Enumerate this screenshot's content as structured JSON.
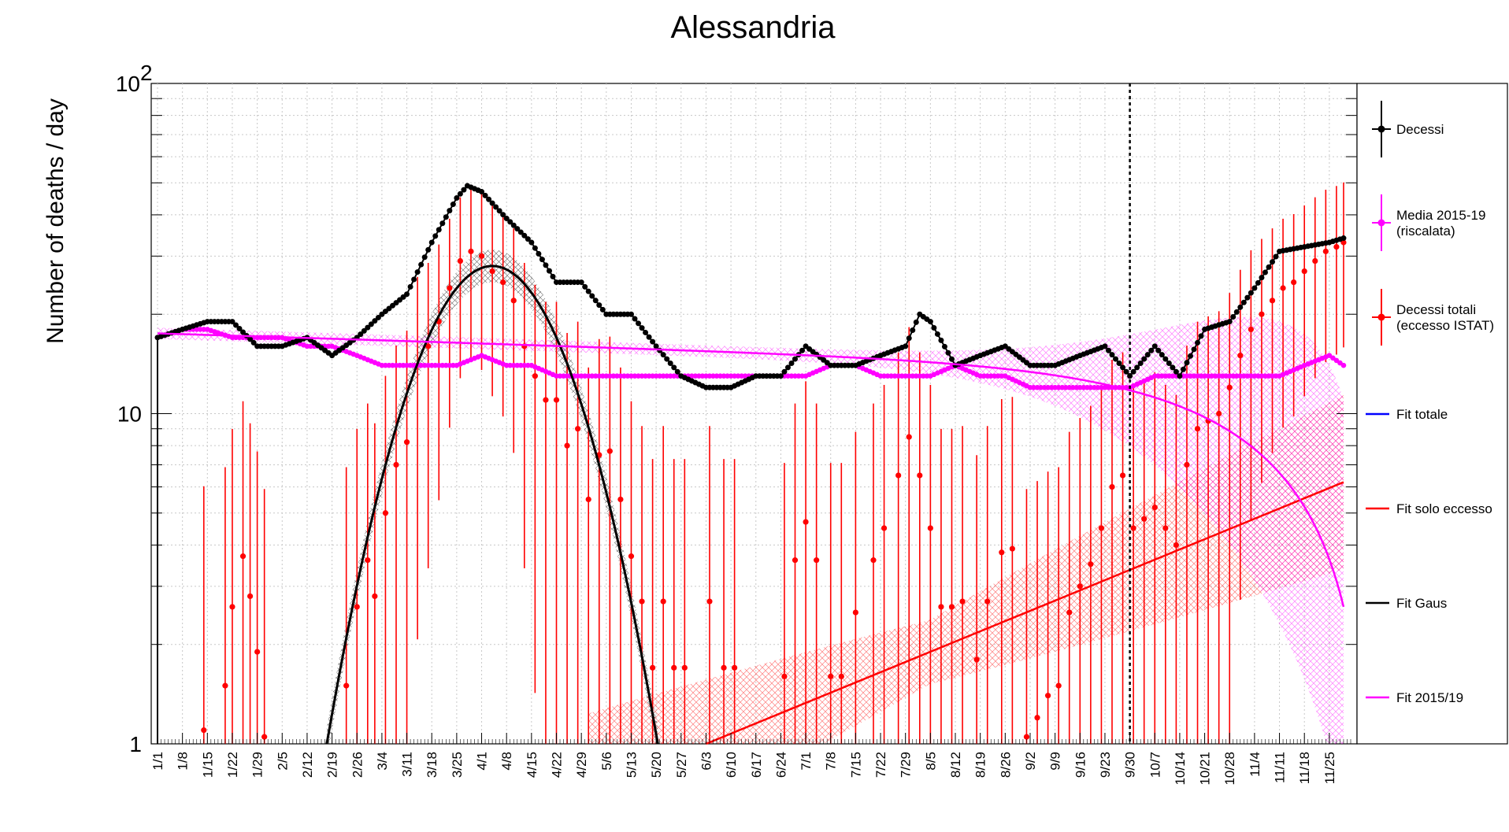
{
  "chart_data": {
    "type": "scatter",
    "title": "Alessandria",
    "xlabel": "",
    "ylabel": "Number of deaths / day",
    "y_scale": "log",
    "ylim": [
      1,
      100
    ],
    "y_ticks": [
      {
        "v": 1,
        "label": "1"
      },
      {
        "v": 10,
        "label": "10"
      },
      {
        "v": 100,
        "label": "10",
        "sup": "2"
      }
    ],
    "x_range": [
      "2020-01-01",
      "2020-12-01"
    ],
    "x_tick_labels": [
      "1/1",
      "1/8",
      "1/15",
      "1/22",
      "1/29",
      "2/5",
      "2/12",
      "2/19",
      "2/26",
      "3/4",
      "3/11",
      "3/18",
      "3/25",
      "4/1",
      "4/8",
      "4/15",
      "4/22",
      "4/29",
      "5/6",
      "5/13",
      "5/20",
      "5/27",
      "6/3",
      "6/10",
      "6/17",
      "6/24",
      "7/1",
      "7/8",
      "7/15",
      "7/22",
      "7/29",
      "8/5",
      "8/12",
      "8/19",
      "8/26",
      "9/2",
      "9/9",
      "9/16",
      "9/23",
      "9/30",
      "10/7",
      "10/14",
      "10/21",
      "10/28",
      "11/4",
      "11/11",
      "11/18",
      "11/25"
    ],
    "vertical_marker": "2020-09-30",
    "grid": true,
    "legend_position": "right",
    "colors": {
      "decessi": "#000000",
      "media": "#ff00ff",
      "eccesso": "#ff0000",
      "fit_totale": "#0000ff"
    },
    "legend": [
      {
        "label": "Decessi",
        "color": "#000000",
        "kind": "marker"
      },
      {
        "label": "Media 2015-19",
        "label2": "(riscalata)",
        "color": "#ff00ff",
        "kind": "marker"
      },
      {
        "label": "Decessi totali",
        "label2": "(eccesso ISTAT)",
        "color": "#ff0000",
        "kind": "marker"
      },
      {
        "label": "Fit totale",
        "color": "#0000ff",
        "kind": "line"
      },
      {
        "label": "Fit solo eccesso",
        "color": "#ff0000",
        "kind": "line"
      },
      {
        "label": "Fit Gaus",
        "color": "#000000",
        "kind": "line"
      },
      {
        "label": "Fit 2015/19",
        "color": "#ff00ff",
        "kind": "line"
      }
    ],
    "series": [
      {
        "name": "Decessi",
        "color": "#000000",
        "x": [
          "2020-01-01",
          "2020-01-08",
          "2020-01-15",
          "2020-01-22",
          "2020-01-29",
          "2020-02-05",
          "2020-02-12",
          "2020-02-19",
          "2020-02-26",
          "2020-03-04",
          "2020-03-11",
          "2020-03-18",
          "2020-03-25",
          "2020-03-28",
          "2020-04-01",
          "2020-04-08",
          "2020-04-15",
          "2020-04-22",
          "2020-04-29",
          "2020-05-06",
          "2020-05-13",
          "2020-05-20",
          "2020-05-27",
          "2020-06-03",
          "2020-06-10",
          "2020-06-17",
          "2020-06-24",
          "2020-07-01",
          "2020-07-08",
          "2020-07-15",
          "2020-07-22",
          "2020-07-29",
          "2020-08-02",
          "2020-08-05",
          "2020-08-12",
          "2020-08-19",
          "2020-08-26",
          "2020-09-02",
          "2020-09-09",
          "2020-09-16",
          "2020-09-23",
          "2020-09-30",
          "2020-10-07",
          "2020-10-14",
          "2020-10-21",
          "2020-10-28",
          "2020-11-04",
          "2020-11-11",
          "2020-11-18",
          "2020-11-25",
          "2020-11-29"
        ],
        "y": [
          17,
          18,
          19,
          19,
          16,
          16,
          17,
          15,
          17,
          20,
          23,
          33,
          45,
          49,
          47,
          39,
          33,
          25,
          25,
          20,
          20,
          16,
          13,
          12,
          12,
          13,
          13,
          16,
          14,
          14,
          15,
          16,
          20,
          19,
          14,
          15,
          16,
          14,
          14,
          15,
          16,
          13,
          16,
          13,
          18,
          19,
          24,
          31,
          32,
          33,
          34
        ]
      },
      {
        "name": "Media 2015-19",
        "color": "#ff00ff",
        "x": [
          "2020-01-01",
          "2020-01-08",
          "2020-01-15",
          "2020-01-22",
          "2020-01-29",
          "2020-02-05",
          "2020-02-12",
          "2020-02-19",
          "2020-02-26",
          "2020-03-04",
          "2020-03-11",
          "2020-03-18",
          "2020-03-25",
          "2020-04-01",
          "2020-04-08",
          "2020-04-15",
          "2020-04-22",
          "2020-04-29",
          "2020-05-06",
          "2020-05-13",
          "2020-05-20",
          "2020-05-27",
          "2020-06-03",
          "2020-06-10",
          "2020-06-17",
          "2020-06-24",
          "2020-07-01",
          "2020-07-08",
          "2020-07-15",
          "2020-07-22",
          "2020-07-29",
          "2020-08-05",
          "2020-08-12",
          "2020-08-19",
          "2020-08-26",
          "2020-09-02",
          "2020-09-09",
          "2020-09-16",
          "2020-09-23",
          "2020-09-30",
          "2020-10-07",
          "2020-10-14",
          "2020-10-21",
          "2020-10-28",
          "2020-11-04",
          "2020-11-11",
          "2020-11-18",
          "2020-11-25",
          "2020-11-29"
        ],
        "y": [
          17,
          18,
          18,
          17,
          17,
          17,
          16,
          16,
          15,
          14,
          14,
          14,
          14,
          15,
          14,
          14,
          13,
          13,
          13,
          13,
          13,
          13,
          13,
          13,
          13,
          13,
          13,
          14,
          14,
          13,
          13,
          13,
          14,
          13,
          13,
          12,
          12,
          12,
          12,
          12,
          13,
          13,
          13,
          13,
          13,
          13,
          14,
          15,
          14
        ]
      },
      {
        "name": "Decessi totali",
        "color": "#ff0000",
        "x": [
          "2020-01-14",
          "2020-01-20",
          "2020-01-22",
          "2020-01-25",
          "2020-01-27",
          "2020-01-29",
          "2020-01-31",
          "2020-02-23",
          "2020-02-26",
          "2020-02-29",
          "2020-03-02",
          "2020-03-05",
          "2020-03-08",
          "2020-03-11",
          "2020-03-14",
          "2020-03-17",
          "2020-03-20",
          "2020-03-23",
          "2020-03-26",
          "2020-03-29",
          "2020-04-01",
          "2020-04-04",
          "2020-04-07",
          "2020-04-10",
          "2020-04-13",
          "2020-04-16",
          "2020-04-19",
          "2020-04-22",
          "2020-04-25",
          "2020-04-28",
          "2020-05-01",
          "2020-05-04",
          "2020-05-07",
          "2020-05-10",
          "2020-05-13",
          "2020-05-16",
          "2020-05-19",
          "2020-05-22",
          "2020-05-25",
          "2020-05-28",
          "2020-06-04",
          "2020-06-08",
          "2020-06-11",
          "2020-06-25",
          "2020-06-28",
          "2020-07-01",
          "2020-07-04",
          "2020-07-08",
          "2020-07-11",
          "2020-07-15",
          "2020-07-20",
          "2020-07-23",
          "2020-07-27",
          "2020-07-30",
          "2020-08-02",
          "2020-08-05",
          "2020-08-08",
          "2020-08-11",
          "2020-08-14",
          "2020-08-18",
          "2020-08-21",
          "2020-08-25",
          "2020-08-28",
          "2020-09-01",
          "2020-09-04",
          "2020-09-07",
          "2020-09-10",
          "2020-09-13",
          "2020-09-16",
          "2020-09-19",
          "2020-09-22",
          "2020-09-25",
          "2020-09-28",
          "2020-10-01",
          "2020-10-04",
          "2020-10-07",
          "2020-10-10",
          "2020-10-13",
          "2020-10-16",
          "2020-10-19",
          "2020-10-22",
          "2020-10-25",
          "2020-10-28",
          "2020-10-31",
          "2020-11-03",
          "2020-11-06",
          "2020-11-09",
          "2020-11-12",
          "2020-11-15",
          "2020-11-18",
          "2020-11-21",
          "2020-11-24",
          "2020-11-27",
          "2020-11-29"
        ],
        "y": [
          1.1,
          1.5,
          2.6,
          3.7,
          2.8,
          1.9,
          1.05,
          1.5,
          2.6,
          3.6,
          2.8,
          5.0,
          7.0,
          8.2,
          14,
          16,
          19,
          24,
          29,
          31,
          30,
          27,
          25,
          22,
          16,
          13,
          11,
          11,
          8.0,
          9.0,
          5.5,
          7.5,
          7.7,
          5.5,
          3.7,
          2.7,
          1.7,
          2.7,
          1.7,
          1.7,
          2.7,
          1.7,
          1.7,
          1.6,
          3.6,
          4.7,
          3.6,
          1.6,
          1.6,
          2.5,
          3.6,
          4.5,
          6.5,
          8.5,
          6.5,
          4.5,
          2.6,
          2.6,
          2.7,
          1.8,
          2.7,
          3.8,
          3.9,
          1.05,
          1.2,
          1.4,
          1.5,
          2.5,
          3.0,
          3.5,
          4.5,
          6.0,
          6.5,
          4.5,
          4.8,
          5.2,
          4.5,
          4.0,
          7.0,
          9.0,
          9.5,
          10,
          12,
          15,
          18,
          20,
          22,
          24,
          25,
          27,
          29,
          31,
          32,
          33
        ]
      }
    ],
    "fits": [
      {
        "name": "Fit Gaus",
        "color": "#000000",
        "type": "gaussian",
        "peak": 28,
        "peak_x": "2020-04-04"
      },
      {
        "name": "Fit solo eccesso",
        "color": "#ff0000",
        "type": "exponential",
        "from": [
          "2020-06-03",
          1.0
        ],
        "to": [
          "2020-11-29",
          6.2
        ]
      },
      {
        "name": "Fit 2015/19",
        "color": "#ff00ff",
        "type": "decay",
        "from": [
          "2020-01-01",
          17.5
        ],
        "to": [
          "2020-11-29",
          2.6
        ]
      }
    ]
  }
}
